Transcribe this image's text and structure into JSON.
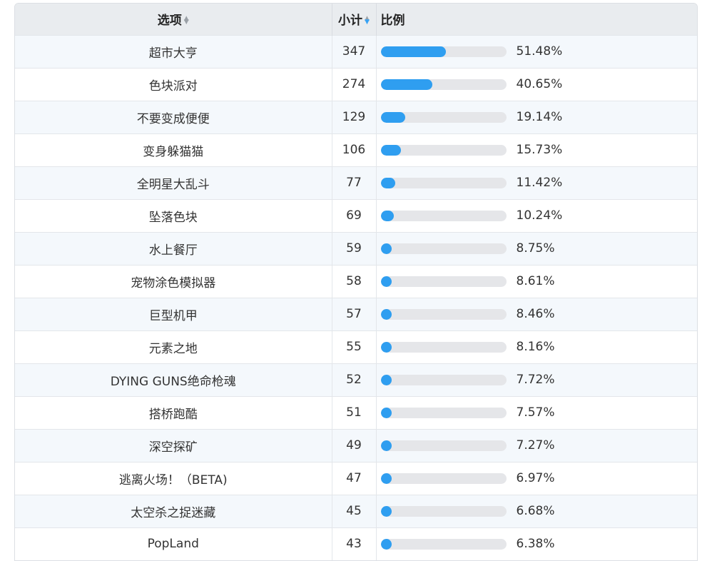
{
  "table": {
    "headers": {
      "option": "选项",
      "count": "小计",
      "ratio": "比例"
    },
    "rows": [
      {
        "option": "超市大亨",
        "count": "347",
        "ratio": "51.48%",
        "fraction": 0.5148
      },
      {
        "option": "色块派对",
        "count": "274",
        "ratio": "40.65%",
        "fraction": 0.4065
      },
      {
        "option": "不要变成便便",
        "count": "129",
        "ratio": "19.14%",
        "fraction": 0.1914
      },
      {
        "option": "变身躲猫猫",
        "count": "106",
        "ratio": "15.73%",
        "fraction": 0.1573
      },
      {
        "option": "全明星大乱斗",
        "count": "77",
        "ratio": "11.42%",
        "fraction": 0.1142
      },
      {
        "option": "坠落色块",
        "count": "69",
        "ratio": "10.24%",
        "fraction": 0.1024
      },
      {
        "option": "水上餐厅",
        "count": "59",
        "ratio": "8.75%",
        "fraction": 0.0875
      },
      {
        "option": "宠物涂色模拟器",
        "count": "58",
        "ratio": "8.61%",
        "fraction": 0.0861
      },
      {
        "option": "巨型机甲",
        "count": "57",
        "ratio": "8.46%",
        "fraction": 0.0846
      },
      {
        "option": "元素之地",
        "count": "55",
        "ratio": "8.16%",
        "fraction": 0.0816
      },
      {
        "option": "DYING GUNS绝命枪魂",
        "count": "52",
        "ratio": "7.72%",
        "fraction": 0.0772
      },
      {
        "option": "搭桥跑酷",
        "count": "51",
        "ratio": "7.57%",
        "fraction": 0.0757
      },
      {
        "option": "深空探矿",
        "count": "49",
        "ratio": "7.27%",
        "fraction": 0.0727
      },
      {
        "option": "逃离火场！（BETA)",
        "count": "47",
        "ratio": "6.97%",
        "fraction": 0.0697
      },
      {
        "option": "太空杀之捉迷藏",
        "count": "45",
        "ratio": "6.68%",
        "fraction": 0.0668
      },
      {
        "option": "PopLand",
        "count": "43",
        "ratio": "6.38%",
        "fraction": 0.0638
      }
    ]
  },
  "colors": {
    "bar_fill": "#2f9ef0",
    "bar_track": "#e5e6e9",
    "header_bg": "#e9ecef",
    "stripe_bg": "#f4f8fc"
  },
  "icons": {
    "option_sort": "sort-both-icon",
    "count_sort": "sort-active-icon"
  }
}
